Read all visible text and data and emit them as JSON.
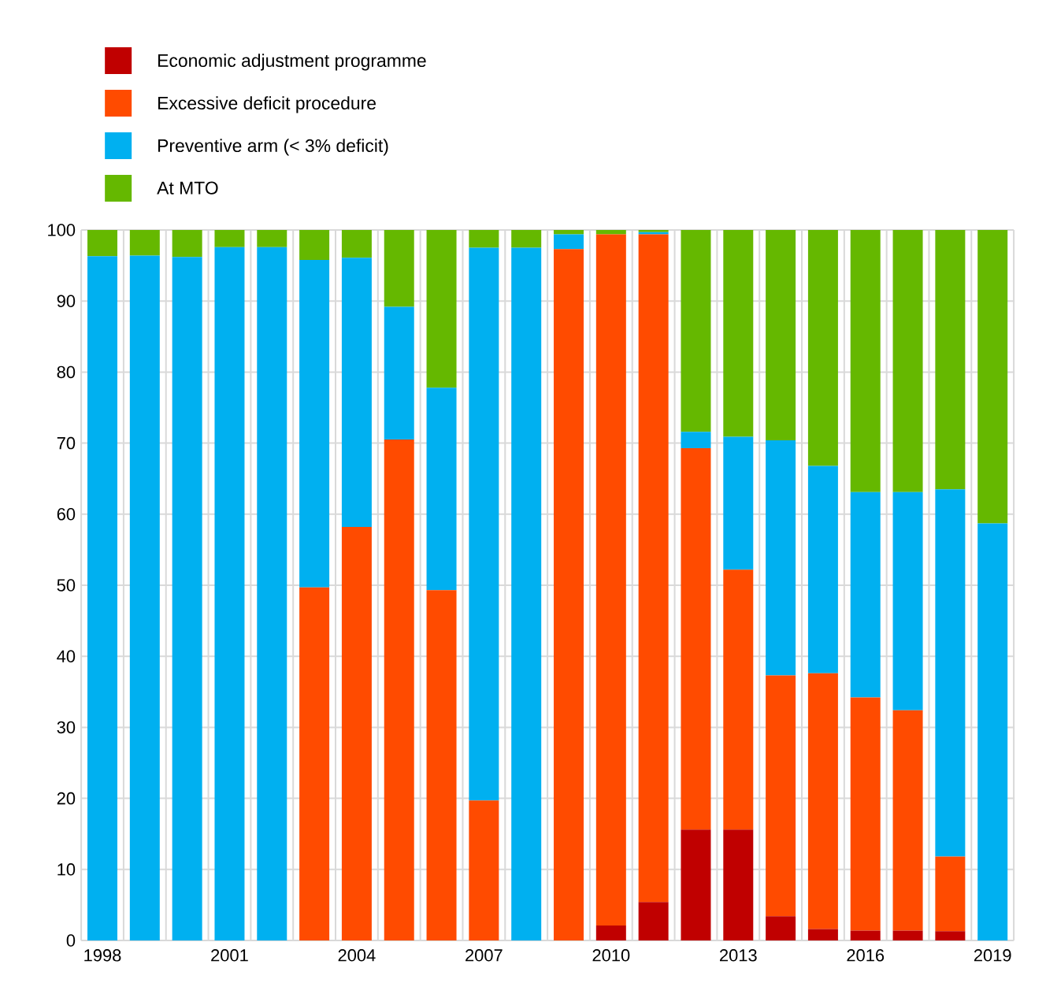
{
  "chart_data": {
    "type": "bar",
    "stacked": true,
    "categories": [
      "1998",
      null,
      null,
      "2001",
      null,
      null,
      "2004",
      null,
      null,
      "2007",
      null,
      null,
      "2010",
      null,
      null,
      "2013",
      null,
      null,
      "2016",
      null,
      null,
      "2019"
    ],
    "series": [
      {
        "name": "Economic adjustment programme",
        "color": "#c00000",
        "values": [
          0,
          0,
          0,
          0,
          0,
          0,
          0,
          0,
          0,
          0,
          0,
          0,
          2.1,
          5.4,
          15.6,
          15.6,
          3.4,
          1.6,
          1.4,
          1.4,
          1.3,
          0
        ]
      },
      {
        "name": "Excessive deficit procedure",
        "color": "#ff4b00",
        "values": [
          0,
          0,
          0,
          0,
          0,
          49.7,
          58.2,
          70.5,
          49.3,
          19.7,
          0,
          97.3,
          97.3,
          94.0,
          53.7,
          36.6,
          33.9,
          36.0,
          32.8,
          31.0,
          10.5,
          0
        ]
      },
      {
        "name": "Preventive arm (< 3% deficit)",
        "color": "#00b0f0",
        "values": [
          96.3,
          96.4,
          96.2,
          97.6,
          97.6,
          46.1,
          37.9,
          18.7,
          28.5,
          77.8,
          97.5,
          2.1,
          0,
          0.3,
          2.3,
          18.7,
          33.1,
          29.2,
          28.9,
          30.7,
          51.7,
          58.7
        ]
      },
      {
        "name": "At MTO",
        "color": "#65b800",
        "values": [
          3.7,
          3.6,
          3.8,
          2.4,
          2.4,
          4.2,
          3.9,
          10.8,
          22.2,
          2.5,
          2.5,
          0.6,
          0.6,
          0.3,
          28.4,
          29.1,
          29.6,
          33.2,
          36.9,
          36.9,
          36.5,
          41.3
        ]
      }
    ],
    "ylim": [
      0,
      100
    ],
    "yticks": [
      0,
      10,
      20,
      30,
      40,
      50,
      60,
      70,
      80,
      90,
      100
    ],
    "grid": true,
    "legend": "top left"
  }
}
